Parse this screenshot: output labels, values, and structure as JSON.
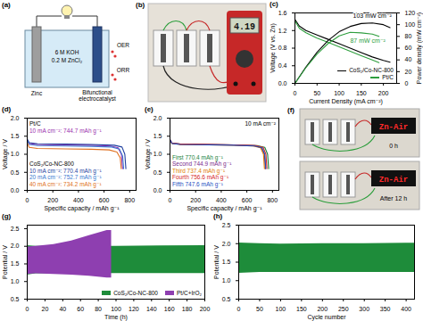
{
  "diagram": {
    "a": {
      "panel_label": "(a)",
      "anode": "Zinc",
      "electrolyte": [
        "6 M KOH",
        "0.2 M ZnCl₂"
      ],
      "cathode": "Bifunctional electrocatalyst",
      "reactions": [
        "OER",
        "ORR"
      ]
    },
    "b": {
      "panel_label": "(b)",
      "meter_reading": "4.19"
    },
    "f": {
      "panel_label": "(f)",
      "display_text": "Zn-Air",
      "times": [
        "0 h",
        "After 12 h"
      ]
    }
  },
  "chart_data": [
    {
      "panel_label": "(c)",
      "type": "line",
      "xlabel": "Current Density (mA cm⁻²)",
      "ylabel": "Voltage (V vs. Zn)",
      "y2label": "Power density (mW cm⁻²)",
      "xlim": [
        0,
        230
      ],
      "xticks": [
        0,
        50,
        100,
        150,
        200
      ],
      "ylim": [
        0,
        1.6
      ],
      "yticks": [
        {
          "value": 0,
          "label": "0.0"
        },
        0.4,
        0.8,
        1.2,
        1.6
      ],
      "y2lim": [
        0,
        120
      ],
      "y2ticks": [
        0,
        20,
        40,
        60,
        80,
        100,
        120
      ],
      "legend": "bottom-right",
      "annotations": [
        "103 mW cm⁻²",
        "87 mW cm⁻²"
      ],
      "series": [
        {
          "name": "CoS₂/Co-NC-800",
          "color": "#000000",
          "x": [
            0,
            10,
            25,
            50,
            75,
            100,
            125,
            150,
            175,
            200,
            215
          ],
          "values": [
            1.45,
            1.3,
            1.2,
            1.1,
            1.0,
            0.9,
            0.8,
            0.7,
            0.6,
            0.52,
            0.48
          ]
        },
        {
          "name": "Pt/C",
          "color": "#2e9e3e",
          "x": [
            0,
            10,
            25,
            50,
            75,
            100,
            125,
            150,
            175,
            190
          ],
          "values": [
            1.42,
            1.25,
            1.15,
            1.03,
            0.93,
            0.83,
            0.73,
            0.63,
            0.53,
            0.47
          ]
        },
        {
          "name": "CoS₂/Co-NC-800",
          "color": "#000000",
          "axis": "y2",
          "x": [
            0,
            25,
            50,
            75,
            100,
            125,
            150,
            175,
            200,
            215
          ],
          "values": [
            0,
            28,
            53,
            73,
            88,
            97,
            102,
            103,
            100,
            95
          ]
        },
        {
          "name": "Pt/C",
          "color": "#2e9e3e",
          "axis": "y2",
          "x": [
            0,
            25,
            50,
            75,
            100,
            125,
            150,
            175,
            190
          ],
          "values": [
            0,
            27,
            50,
            68,
            81,
            87,
            86,
            84,
            80
          ]
        }
      ]
    },
    {
      "panel_label": "(d)",
      "type": "line",
      "xlabel": "Specific capacity / mAh g⁻¹",
      "ylabel": "Voltage / V",
      "xlim": [
        0,
        850
      ],
      "xticks": [
        0,
        200,
        400,
        600,
        800
      ],
      "ylim": [
        0,
        2
      ],
      "yticks": [
        {
          "value": 0,
          "label": "0.0"
        },
        0.5,
        {
          "value": 1,
          "label": "1.0"
        },
        1.5,
        {
          "value": 2,
          "label": "2.0"
        }
      ],
      "legend": "left",
      "series": [
        {
          "name": "10 mA cm⁻²: 744.7 mAh g⁻¹",
          "group": "Pt/C",
          "color": "#9b2fae",
          "x": [
            0,
            15,
            80,
            300,
            500,
            650,
            710,
            735,
            744.7
          ],
          "values": [
            1.4,
            1.3,
            1.27,
            1.26,
            1.25,
            1.23,
            1.18,
            1.0,
            0.6
          ]
        },
        {
          "name": "10 mA cm⁻²: 770.4 mAh g⁻¹",
          "group": "CoS₂/Co-NC-800",
          "color": "#1f3f9f",
          "x": [
            0,
            15,
            80,
            300,
            500,
            680,
            740,
            762,
            770.4
          ],
          "values": [
            1.42,
            1.32,
            1.29,
            1.28,
            1.27,
            1.25,
            1.2,
            1.0,
            0.6
          ]
        },
        {
          "name": "20 mA cm⁻²: 752.7 mAh g⁻¹",
          "group": "CoS₂/Co-NC-800",
          "color": "#3a78d0",
          "x": [
            0,
            15,
            80,
            300,
            500,
            660,
            720,
            745,
            752.7
          ],
          "values": [
            1.38,
            1.27,
            1.24,
            1.23,
            1.22,
            1.2,
            1.14,
            0.95,
            0.6
          ]
        },
        {
          "name": "40 mA cm⁻²: 734.2 mAh g⁻¹",
          "group": "CoS₂/Co-NC-800",
          "color": "#e07020",
          "x": [
            0,
            15,
            80,
            300,
            500,
            640,
            700,
            726,
            734.2
          ],
          "values": [
            1.32,
            1.19,
            1.16,
            1.15,
            1.14,
            1.12,
            1.06,
            0.9,
            0.6
          ]
        }
      ]
    },
    {
      "panel_label": "(e)",
      "type": "line",
      "xlabel": "Specific capacity / mAh g⁻¹",
      "ylabel": "Voltage / V",
      "xlim": [
        0,
        850
      ],
      "xticks": [
        0,
        200,
        400,
        600,
        800
      ],
      "ylim": [
        0,
        2
      ],
      "yticks": [
        {
          "value": 0,
          "label": "0.0"
        },
        0.5,
        {
          "value": 1,
          "label": "1.0"
        },
        1.5,
        {
          "value": 2,
          "label": "2.0"
        }
      ],
      "legend": "bottom-left",
      "annotations": [
        "10 mA cm⁻²"
      ],
      "series": [
        {
          "name": "First 770.4 mAh g⁻¹",
          "color": "#1a7f3c",
          "x": [
            0,
            15,
            80,
            300,
            500,
            680,
            740,
            762,
            770.4
          ],
          "values": [
            1.4,
            1.31,
            1.28,
            1.27,
            1.26,
            1.24,
            1.19,
            1.0,
            0.6
          ]
        },
        {
          "name": "Second 744.9 mAh g⁻¹",
          "color": "#7b2d8e",
          "x": [
            0,
            15,
            80,
            300,
            500,
            660,
            715,
            737,
            744.9
          ],
          "values": [
            1.41,
            1.31,
            1.28,
            1.27,
            1.26,
            1.24,
            1.18,
            1.0,
            0.6
          ]
        },
        {
          "name": "Third 737.4 mAh g⁻¹",
          "color": "#e07b00",
          "x": [
            0,
            15,
            80,
            300,
            500,
            650,
            707,
            730,
            737.4
          ],
          "values": [
            1.39,
            1.3,
            1.27,
            1.26,
            1.25,
            1.23,
            1.18,
            1.0,
            0.6
          ]
        },
        {
          "name": "Fourth 756.6 mAh g⁻¹",
          "color": "#d62728",
          "x": [
            0,
            15,
            80,
            300,
            500,
            670,
            727,
            749,
            756.6
          ],
          "values": [
            1.4,
            1.31,
            1.28,
            1.27,
            1.26,
            1.24,
            1.19,
            1.0,
            0.6
          ]
        },
        {
          "name": "Fifth 747.6 mAh g⁻¹",
          "color": "#1f4fbf",
          "x": [
            0,
            15,
            80,
            300,
            500,
            660,
            718,
            740,
            747.6
          ],
          "values": [
            1.4,
            1.3,
            1.27,
            1.26,
            1.25,
            1.23,
            1.18,
            1.0,
            0.6
          ]
        }
      ]
    },
    {
      "panel_label": "(g)",
      "type": "area",
      "xlabel": "Time (h)",
      "ylabel": "Potential / V",
      "xlim": [
        0,
        200
      ],
      "xticks": [
        0,
        20,
        40,
        60,
        80,
        100,
        120,
        140,
        160,
        180,
        200
      ],
      "ylim": [
        0.5,
        2.6
      ],
      "yticks": [
        0.5,
        {
          "value": 1,
          "label": "1.0"
        },
        1.5,
        {
          "value": 2,
          "label": "2.0"
        },
        2.5
      ],
      "legend": "bottom-right",
      "series": [
        {
          "name": "CoS₂/Co-NC-800",
          "color": "#1e8c3a",
          "x": [
            0,
            10,
            50,
            100,
            150,
            200
          ],
          "lower": [
            1.18,
            1.22,
            1.22,
            1.23,
            1.23,
            1.23
          ],
          "upper": [
            2.02,
            2.0,
            2.0,
            2.0,
            2.01,
            2.02
          ]
        },
        {
          "name": "Pt/C+IrO₂",
          "color": "#8e3fb0",
          "x": [
            0,
            10,
            30,
            50,
            70,
            90,
            95
          ],
          "lower": [
            1.2,
            1.22,
            1.2,
            1.18,
            1.15,
            1.1,
            1.1
          ],
          "upper": [
            1.98,
            2.0,
            2.05,
            2.15,
            2.3,
            2.45,
            2.45
          ]
        }
      ]
    },
    {
      "panel_label": "(h)",
      "type": "area",
      "xlabel": "Cycle number",
      "ylabel": "Potential / V",
      "xlim": [
        0,
        420
      ],
      "xticks": [
        0,
        50,
        100,
        150,
        200,
        250,
        300,
        350,
        400
      ],
      "ylim": [
        0.5,
        2.5
      ],
      "yticks": [
        0.5,
        {
          "value": 1,
          "label": "1.0"
        },
        1.5,
        {
          "value": 2,
          "label": "2.0"
        },
        2.5
      ],
      "series": [
        {
          "color": "#1e8c3a",
          "x": [
            0,
            50,
            100,
            200,
            300,
            400,
            420
          ],
          "lower": [
            1.2,
            1.22,
            1.22,
            1.22,
            1.22,
            1.22,
            1.22
          ],
          "upper": [
            2.02,
            2.0,
            1.99,
            2.0,
            2.0,
            2.01,
            2.01
          ]
        }
      ]
    }
  ]
}
